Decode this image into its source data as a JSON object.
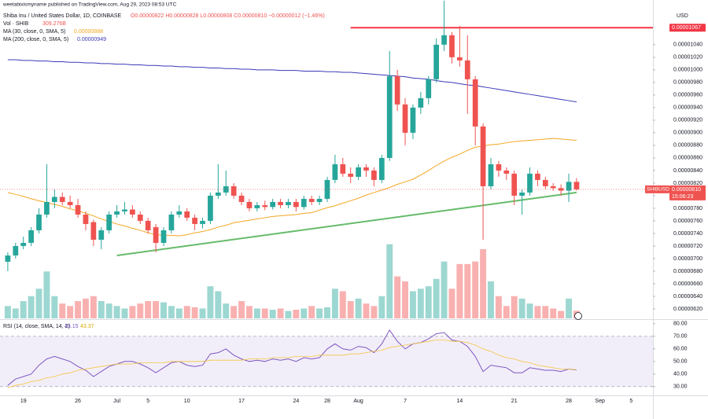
{
  "chart_data": {
    "type": "candlestick",
    "header": {
      "publisher": "weetabixismyname published on TradingView.com, Aug 29, 2023 08:53 UTC",
      "symbol": "Shiba Inu / United States Dollar, 1D, COINBASE",
      "ohlc": "O0.00000822 H0.00000828 L0.00000808 C0.00000810 −0.00000012 (−1.46%)",
      "currency": "USD",
      "ticker": "SHIBUSD",
      "last_price_label": "0.00000810",
      "countdown": "15:06:23"
    },
    "up_color": "#26a69a",
    "down_color": "#ef5350",
    "grid": false,
    "xlim": [
      -1,
      82.8
    ],
    "xticks": [
      {
        "value": 2,
        "label": "19"
      },
      {
        "value": 9,
        "label": "26"
      },
      {
        "value": 14,
        "label": "Jul"
      },
      {
        "value": 18,
        "label": "5"
      },
      {
        "value": 23,
        "label": "10"
      },
      {
        "value": 30,
        "label": "17"
      },
      {
        "value": 37,
        "label": "24"
      },
      {
        "value": 41,
        "label": "28"
      },
      {
        "value": 45,
        "label": "Aug"
      },
      {
        "value": 51,
        "label": "7"
      },
      {
        "value": 58,
        "label": "14"
      },
      {
        "value": 65,
        "label": "21"
      },
      {
        "value": 72,
        "label": "28"
      },
      {
        "value": 76,
        "label": "Sep"
      },
      {
        "value": 80,
        "label": "5"
      }
    ],
    "ylim": [
      6.05e-06,
      1.111e-05
    ],
    "yticks": [
      {
        "value": 6.2e-06,
        "label": "0.00000620"
      },
      {
        "value": 6.4e-06,
        "label": "0.00000640"
      },
      {
        "value": 6.6e-06,
        "label": "0.00000660"
      },
      {
        "value": 6.8e-06,
        "label": "0.00000680"
      },
      {
        "value": 7e-06,
        "label": "0.00000700"
      },
      {
        "value": 7.2e-06,
        "label": "0.00000720"
      },
      {
        "value": 7.4e-06,
        "label": "0.00000740"
      },
      {
        "value": 7.6e-06,
        "label": "0.00000760"
      },
      {
        "value": 7.8e-06,
        "label": "0.00000780"
      },
      {
        "value": 8e-06,
        "label": "0.00000800"
      },
      {
        "value": 8.2e-06,
        "label": "0.00000820"
      },
      {
        "value": 8.4e-06,
        "label": "0.00000840"
      },
      {
        "value": 8.6e-06,
        "label": "0.00000860"
      },
      {
        "value": 8.8e-06,
        "label": "0.00000880"
      },
      {
        "value": 9e-06,
        "label": "0.00000900"
      },
      {
        "value": 9.2e-06,
        "label": "0.00000920"
      },
      {
        "value": 9.4e-06,
        "label": "0.00000940"
      },
      {
        "value": 9.6e-06,
        "label": "0.00000960"
      },
      {
        "value": 9.8e-06,
        "label": "0.00000980"
      },
      {
        "value": 1e-05,
        "label": "0.00001000"
      },
      {
        "value": 1.02e-05,
        "label": "0.00001020"
      },
      {
        "value": 1.04e-05,
        "label": "0.00001040"
      }
    ],
    "open": [
      6.95e-06,
      7.05e-06,
      7.2e-06,
      7.25e-06,
      7.45e-06,
      7.7e-06,
      7.9e-06,
      7.98e-06,
      7.9e-06,
      7.85e-06,
      7.7e-06,
      7.58e-06,
      7.3e-06,
      7.45e-06,
      7.7e-06,
      7.75e-06,
      7.78e-06,
      7.7e-06,
      7.6e-06,
      7.5e-06,
      7.25e-06,
      7.45e-06,
      7.7e-06,
      7.75e-06,
      7.65e-06,
      7.55e-06,
      7.6e-06,
      8e-06,
      8.05e-06,
      8.15e-06,
      8e-06,
      7.9e-06,
      7.8e-06,
      7.85e-06,
      7.82e-06,
      7.9e-06,
      7.85e-06,
      7.9e-06,
      7.82e-06,
      7.95e-06,
      7.9e-06,
      7.95e-06,
      8.25e-06,
      8.5e-06,
      8.35e-06,
      8.3e-06,
      8.45e-06,
      8.4e-06,
      8.25e-06,
      8.6e-06,
      9.9e-06,
      9.45e-06,
      9e-06,
      9.4e-06,
      9.55e-06,
      9.85e-06,
      1.04e-05,
      1.055e-05,
      1.02e-05,
      1.015e-05,
      9.85e-06,
      9.1e-06,
      8.15e-06,
      8.5e-06,
      8.4e-06,
      8.35e-06,
      8e-06,
      8.05e-06,
      8.35e-06,
      8.25e-06,
      8.15e-06,
      8.12e-06,
      8.08e-06,
      8.22e-06
    ],
    "high": [
      7.1e-06,
      7.25e-06,
      7.35e-06,
      7.5e-06,
      7.8e-06,
      8.5e-06,
      8.1e-06,
      8.05e-06,
      8e-06,
      7.95e-06,
      7.75e-06,
      7.62e-06,
      7.5e-06,
      7.75e-06,
      7.85e-06,
      7.9e-06,
      7.85e-06,
      7.75e-06,
      7.65e-06,
      7.55e-06,
      7.5e-06,
      7.75e-06,
      7.85e-06,
      7.8e-06,
      7.7e-06,
      7.65e-06,
      8.05e-06,
      8.5e-06,
      8.4e-06,
      8.2e-06,
      8.05e-06,
      7.95e-06,
      7.9e-06,
      7.92e-06,
      7.95e-06,
      7.95e-06,
      7.95e-06,
      7.95e-06,
      8e-06,
      8e-06,
      8e-06,
      8.3e-06,
      8.65e-06,
      8.6e-06,
      8.45e-06,
      8.5e-06,
      8.5e-06,
      8.45e-06,
      8.65e-06,
      1.03e-05,
      1e-05,
      9.55e-06,
      9.45e-06,
      9.65e-06,
      9.9e-06,
      1.05e-05,
      1.11e-05,
      1.06e-05,
      1.07e-05,
      1.055e-05,
      9.9e-06,
      9.15e-06,
      8.6e-06,
      8.55e-06,
      8.45e-06,
      8.4e-06,
      8.1e-06,
      8.45e-06,
      8.4e-06,
      8.3e-06,
      8.2e-06,
      8.18e-06,
      8.35e-06,
      8.28e-06
    ],
    "low": [
      6.8e-06,
      7e-06,
      7.15e-06,
      7.2e-06,
      7.4e-06,
      7.65e-06,
      7.8e-06,
      7.85e-06,
      7.8e-06,
      7.65e-06,
      7.45e-06,
      7.2e-06,
      7.15e-06,
      7.4e-06,
      7.65e-06,
      7.7e-06,
      7.65e-06,
      7.55e-06,
      7.4e-06,
      7.1e-06,
      7.2e-06,
      7.4e-06,
      7.65e-06,
      7.6e-06,
      7.45e-06,
      7.48e-06,
      7.55e-06,
      7.95e-06,
      8e-06,
      7.95e-06,
      7.85e-06,
      7.75e-06,
      7.75e-06,
      7.77e-06,
      7.78e-06,
      7.8e-06,
      7.8e-06,
      7.75e-06,
      7.78e-06,
      7.85e-06,
      7.85e-06,
      7.9e-06,
      8.2e-06,
      8.3e-06,
      8.2e-06,
      8.25e-06,
      8.3e-06,
      8.15e-06,
      8.2e-06,
      8.55e-06,
      9.35e-06,
      8.8e-06,
      8.9e-06,
      9.3e-06,
      9.45e-06,
      9.8e-06,
      1.03e-05,
      1.01e-05,
      1.005e-05,
      9.3e-06,
      8.8e-06,
      7.3e-06,
      8.1e-06,
      8.3e-06,
      8.25e-06,
      7.85e-06,
      7.7e-06,
      8e-06,
      8.15e-06,
      8.1e-06,
      8.08e-06,
      8e-06,
      7.9e-06,
      8.08e-06
    ],
    "close": [
      7.05e-06,
      7.2e-06,
      7.25e-06,
      7.45e-06,
      7.7e-06,
      7.9e-06,
      7.98e-06,
      7.9e-06,
      7.85e-06,
      7.7e-06,
      7.55e-06,
      7.3e-06,
      7.45e-06,
      7.7e-06,
      7.75e-06,
      7.78e-06,
      7.7e-06,
      7.6e-06,
      7.45e-06,
      7.25e-06,
      7.45e-06,
      7.7e-06,
      7.75e-06,
      7.65e-06,
      7.55e-06,
      7.6e-06,
      8e-06,
      8.05e-06,
      8.15e-06,
      8e-06,
      7.9e-06,
      7.8e-06,
      7.85e-06,
      7.82e-06,
      7.9e-06,
      7.85e-06,
      7.9e-06,
      7.82e-06,
      7.95e-06,
      7.9e-06,
      7.95e-06,
      8.25e-06,
      8.5e-06,
      8.35e-06,
      8.3e-06,
      8.45e-06,
      8.4e-06,
      8.25e-06,
      8.6e-06,
      9.9e-06,
      9.45e-06,
      9e-06,
      9.4e-06,
      9.55e-06,
      9.85e-06,
      1.04e-05,
      1.055e-05,
      1.02e-05,
      1.015e-05,
      9.85e-06,
      9.1e-06,
      8.15e-06,
      8.5e-06,
      8.4e-06,
      8.35e-06,
      8e-06,
      8.05e-06,
      8.35e-06,
      8.25e-06,
      8.15e-06,
      8.12e-06,
      8.08e-06,
      8.22e-06,
      8.1e-06
    ],
    "volume": {
      "name": "Vol · SHIB",
      "value_label": "309.276B",
      "ylim": [
        0,
        3500
      ],
      "values": [
        500,
        400,
        700,
        900,
        1200,
        1900,
        900,
        600,
        500,
        700,
        800,
        900,
        700,
        600,
        500,
        400,
        500,
        600,
        700,
        700,
        650,
        500,
        400,
        500,
        450,
        400,
        1300,
        1100,
        600,
        500,
        700,
        500,
        400,
        400,
        350,
        400,
        300,
        350,
        400,
        500,
        400,
        450,
        1200,
        1100,
        700,
        800,
        600,
        500,
        900,
        3000,
        1700,
        1500,
        1100,
        1200,
        1300,
        1600,
        2300,
        1200,
        2200,
        2200,
        2300,
        2800,
        1500,
        900,
        500,
        900,
        800,
        600,
        500,
        500,
        400,
        300,
        800,
        309.276
      ]
    },
    "series": [
      {
        "name": "MA (30, close, 0, SMA, 5)",
        "color": "#f5a623",
        "value_label": "0.00000888",
        "values": [
          8.05e-06,
          8.02e-06,
          7.99e-06,
          7.95e-06,
          7.92e-06,
          7.89e-06,
          7.86e-06,
          7.83e-06,
          7.79e-06,
          7.76e-06,
          7.72e-06,
          7.68e-06,
          7.63e-06,
          7.59e-06,
          7.55e-06,
          7.52e-06,
          7.48e-06,
          7.45e-06,
          7.41e-06,
          7.38e-06,
          7.37e-06,
          7.37e-06,
          7.36e-06,
          7.38e-06,
          7.41e-06,
          7.43e-06,
          7.46e-06,
          7.5e-06,
          7.53e-06,
          7.57e-06,
          7.59e-06,
          7.61e-06,
          7.63e-06,
          7.65e-06,
          7.67e-06,
          7.68e-06,
          7.69e-06,
          7.7e-06,
          7.72e-06,
          7.73e-06,
          7.77e-06,
          7.81e-06,
          7.84e-06,
          7.88e-06,
          7.92e-06,
          7.96e-06,
          8.01e-06,
          8.05e-06,
          8.09e-06,
          8.13e-06,
          8.18e-06,
          8.22e-06,
          8.26e-06,
          8.33e-06,
          8.4e-06,
          8.48e-06,
          8.55e-06,
          8.61e-06,
          8.66e-06,
          8.72e-06,
          8.77e-06,
          8.79e-06,
          8.81e-06,
          8.82e-06,
          8.84e-06,
          8.86e-06,
          8.87e-06,
          8.88e-06,
          8.89e-06,
          8.9e-06,
          8.91e-06,
          8.9e-06,
          8.89e-06,
          8.88e-06
        ]
      },
      {
        "name": "MA (200, close, 0, SMA, 5)",
        "color": "#3a3ab8",
        "value_label": "0.00000949",
        "values": [
          1.016e-05,
          1.016e-05,
          1.015e-05,
          1.015e-05,
          1.014e-05,
          1.014e-05,
          1.013e-05,
          1.013e-05,
          1.012e-05,
          1.012e-05,
          1.011e-05,
          1.011e-05,
          1.01e-05,
          1.01e-05,
          1.009e-05,
          1.009e-05,
          1.008e-05,
          1.008e-05,
          1.007e-05,
          1.007e-05,
          1.006e-05,
          1.006e-05,
          1.005e-05,
          1.005e-05,
          1.004e-05,
          1.004e-05,
          1.003e-05,
          1.003e-05,
          1.002e-05,
          1.002e-05,
          1.001e-05,
          1.001e-05,
          1e-05,
          1e-05,
          1e-05,
          9.99e-06,
          9.99e-06,
          9.99e-06,
          9.98e-06,
          9.98e-06,
          9.98e-06,
          9.97e-06,
          9.97e-06,
          9.96e-06,
          9.96e-06,
          9.95e-06,
          9.94e-06,
          9.93e-06,
          9.92e-06,
          9.91e-06,
          9.9e-06,
          9.89e-06,
          9.87e-06,
          9.86e-06,
          9.85e-06,
          9.83e-06,
          9.81e-06,
          9.8e-06,
          9.78e-06,
          9.76e-06,
          9.75e-06,
          9.73e-06,
          9.71e-06,
          9.69e-06,
          9.67e-06,
          9.65e-06,
          9.63e-06,
          9.61e-06,
          9.59e-06,
          9.57e-06,
          9.55e-06,
          9.53e-06,
          9.51e-06,
          9.49e-06
        ]
      }
    ],
    "hline": {
      "value": 1.067e-05,
      "label": "0.00001067",
      "x_start": 44,
      "color": "#f23645"
    },
    "trendline": {
      "x": [
        14,
        73
      ],
      "y": [
        7.05e-06,
        8.05e-06
      ],
      "color": "#66bb6a"
    },
    "rsi": {
      "name": "RSI (14, close, SMA, 14, 2)",
      "ylim": [
        23,
        83
      ],
      "band": [
        30,
        70
      ],
      "yticks": [
        {
          "value": 80,
          "label": "80.00"
        },
        {
          "value": 70,
          "label": "70.00"
        },
        {
          "value": 60,
          "label": "60.00"
        },
        {
          "value": 50,
          "label": "50.00"
        },
        {
          "value": 40,
          "label": "40.00"
        },
        {
          "value": 30,
          "label": "30.00"
        }
      ],
      "series": [
        {
          "color": "#7e57c2",
          "value_label": "43.15",
          "values": [
            31,
            36,
            38,
            40,
            47,
            52,
            54,
            52,
            50,
            46,
            43,
            38,
            42,
            46,
            48,
            50,
            50,
            48,
            45,
            41,
            45,
            49,
            50,
            47,
            46,
            47,
            56,
            57,
            60,
            55,
            52,
            50,
            51,
            50,
            52,
            51,
            52,
            50,
            53,
            52,
            53,
            60,
            64,
            60,
            59,
            62,
            61,
            57,
            64,
            75,
            66,
            60,
            64,
            65,
            68,
            72,
            73,
            67,
            66,
            62,
            54,
            42,
            47,
            46,
            45,
            41,
            41,
            45,
            44,
            43,
            43,
            42,
            44,
            43.15
          ]
        },
        {
          "color": "#f5c542",
          "value_label": "43.37",
          "values": [
            29,
            31,
            32,
            34,
            35,
            37,
            38,
            40,
            41,
            43,
            44,
            45,
            46,
            47,
            48,
            48,
            48,
            49,
            49,
            49,
            49,
            50,
            50,
            50,
            50,
            50,
            51,
            51,
            51,
            51,
            51,
            52,
            52,
            52,
            53,
            53,
            53,
            54,
            54,
            54,
            55,
            55,
            55,
            55,
            56,
            56,
            57,
            58,
            59,
            61,
            62,
            63,
            64,
            65,
            66,
            67,
            67,
            66,
            66,
            65,
            63,
            60,
            58,
            55,
            53,
            52,
            50,
            49,
            47,
            46,
            45,
            44,
            44,
            43.37
          ]
        }
      ]
    }
  }
}
